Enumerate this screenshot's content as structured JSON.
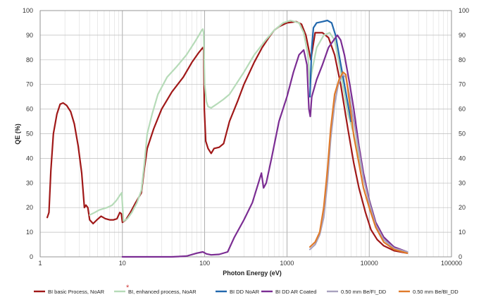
{
  "chart_data": {
    "type": "line",
    "xscale": "log",
    "xlim": [
      1,
      100000
    ],
    "ylim": [
      0,
      100
    ],
    "xlabel": "Photon Energy (eV)",
    "ylabel": "QE (%)",
    "x_ticks": [
      "1",
      "10",
      "100",
      "1000",
      "10000",
      "100000"
    ],
    "y_ticks": [
      "0",
      "10",
      "20",
      "30",
      "40",
      "50",
      "60",
      "70",
      "80",
      "90",
      "100"
    ],
    "grid": true,
    "legend_position": "bottom",
    "annotation": "*",
    "series": [
      {
        "name": "BI basic Process, NoAR",
        "color": "#a01818",
        "points": [
          [
            1.22,
            16
          ],
          [
            1.28,
            18
          ],
          [
            1.35,
            35
          ],
          [
            1.45,
            50
          ],
          [
            1.6,
            58
          ],
          [
            1.75,
            62
          ],
          [
            1.9,
            62.5
          ],
          [
            2.1,
            61.5
          ],
          [
            2.35,
            59
          ],
          [
            2.6,
            54
          ],
          [
            2.9,
            45
          ],
          [
            3.2,
            34
          ],
          [
            3.45,
            20
          ],
          [
            3.6,
            21
          ],
          [
            3.8,
            20
          ],
          [
            4.0,
            15
          ],
          [
            4.4,
            13.5
          ],
          [
            4.9,
            15
          ],
          [
            5.5,
            16.5
          ],
          [
            6.2,
            15.5
          ],
          [
            7,
            15
          ],
          [
            7.8,
            15
          ],
          [
            8.6,
            15.5
          ],
          [
            9.3,
            18
          ],
          [
            9.7,
            17.5
          ],
          [
            10,
            14
          ],
          [
            11,
            15
          ],
          [
            12.5,
            18
          ],
          [
            14.5,
            22
          ],
          [
            17,
            26
          ],
          [
            18.5,
            36
          ],
          [
            20,
            44
          ],
          [
            24,
            52
          ],
          [
            30,
            60
          ],
          [
            40,
            67
          ],
          [
            55,
            73
          ],
          [
            70,
            79
          ],
          [
            85,
            83
          ],
          [
            95,
            85
          ],
          [
            97,
            84
          ],
          [
            99,
            60
          ],
          [
            103,
            47
          ],
          [
            110,
            44
          ],
          [
            120,
            42
          ],
          [
            130,
            44
          ],
          [
            150,
            44.5
          ],
          [
            170,
            46
          ],
          [
            200,
            55
          ],
          [
            250,
            63
          ],
          [
            300,
            70
          ],
          [
            400,
            79
          ],
          [
            500,
            85
          ],
          [
            600,
            89
          ],
          [
            700,
            92
          ],
          [
            800,
            93.5
          ],
          [
            1000,
            95
          ],
          [
            1300,
            95.5
          ],
          [
            1500,
            94.5
          ],
          [
            1700,
            90
          ],
          [
            1950,
            80
          ],
          [
            2200,
            91
          ],
          [
            2700,
            91
          ],
          [
            3200,
            89
          ],
          [
            3800,
            82
          ],
          [
            4500,
            70
          ],
          [
            5500,
            52
          ],
          [
            6500,
            38
          ],
          [
            7500,
            28
          ],
          [
            9000,
            18
          ],
          [
            10500,
            11
          ],
          [
            12500,
            7
          ],
          [
            15000,
            4.5
          ],
          [
            20000,
            2.5
          ],
          [
            29000,
            1.5
          ]
        ]
      },
      {
        "name": "BI, enhanced process, NoAR",
        "color": "#b6dbb8",
        "points": [
          [
            4.0,
            17
          ],
          [
            4.6,
            18
          ],
          [
            5.2,
            19
          ],
          [
            6.5,
            20
          ],
          [
            7.5,
            21
          ],
          [
            8.5,
            23
          ],
          [
            9.3,
            25
          ],
          [
            9.8,
            26
          ],
          [
            10.3,
            14.5
          ],
          [
            11.5,
            15.5
          ],
          [
            13,
            18
          ],
          [
            15,
            22
          ],
          [
            17,
            27
          ],
          [
            18.5,
            38
          ],
          [
            20,
            50
          ],
          [
            23,
            58
          ],
          [
            27,
            66
          ],
          [
            35,
            73
          ],
          [
            45,
            77
          ],
          [
            60,
            82
          ],
          [
            75,
            87
          ],
          [
            85,
            90
          ],
          [
            92,
            92
          ],
          [
            95,
            92.5
          ],
          [
            97,
            91
          ],
          [
            100,
            70
          ],
          [
            105,
            63
          ],
          [
            110,
            61
          ],
          [
            120,
            60.5
          ],
          [
            140,
            62
          ],
          [
            170,
            64
          ],
          [
            200,
            66
          ],
          [
            300,
            75
          ],
          [
            400,
            82
          ],
          [
            550,
            88
          ],
          [
            700,
            92
          ],
          [
            900,
            95
          ],
          [
            1100,
            96
          ],
          [
            1400,
            95
          ],
          [
            1600,
            91
          ],
          [
            1800,
            82
          ],
          [
            1900,
            70
          ],
          [
            2000,
            75
          ],
          [
            2300,
            85
          ],
          [
            2800,
            90
          ],
          [
            3300,
            91
          ],
          [
            3800,
            88
          ],
          [
            4500,
            75
          ],
          [
            5500,
            58
          ],
          [
            6500,
            50
          ],
          [
            7800,
            38
          ],
          [
            9500,
            26
          ],
          [
            12000,
            14
          ],
          [
            15000,
            8
          ],
          [
            20000,
            4
          ],
          [
            29000,
            2
          ]
        ]
      },
      {
        "name": "BI DD NoAR",
        "color": "#2268ad",
        "points": [
          [
            1900,
            65
          ],
          [
            2000,
            85
          ],
          [
            2100,
            93
          ],
          [
            2300,
            95
          ],
          [
            2700,
            95.5
          ],
          [
            3100,
            96
          ],
          [
            3500,
            95
          ],
          [
            3900,
            90
          ],
          [
            4400,
            80
          ],
          [
            5000,
            70
          ],
          [
            6000,
            55
          ]
        ]
      },
      {
        "name": "BI DD AR Coated",
        "color": "#7b2d93",
        "points": [
          [
            10,
            0
          ],
          [
            20,
            0
          ],
          [
            40,
            0
          ],
          [
            60,
            0.3
          ],
          [
            80,
            1.5
          ],
          [
            95,
            2
          ],
          [
            105,
            1.2
          ],
          [
            120,
            0.8
          ],
          [
            150,
            1
          ],
          [
            190,
            2
          ],
          [
            230,
            8
          ],
          [
            300,
            15
          ],
          [
            380,
            22
          ],
          [
            450,
            30
          ],
          [
            490,
            34
          ],
          [
            520,
            28
          ],
          [
            560,
            30
          ],
          [
            650,
            40
          ],
          [
            800,
            55
          ],
          [
            1000,
            65
          ],
          [
            1200,
            75
          ],
          [
            1400,
            82
          ],
          [
            1600,
            84
          ],
          [
            1750,
            78
          ],
          [
            1850,
            60
          ],
          [
            1920,
            57
          ],
          [
            2000,
            65
          ],
          [
            2300,
            72
          ],
          [
            2700,
            78
          ],
          [
            3200,
            85
          ],
          [
            3700,
            88
          ],
          [
            4100,
            90
          ],
          [
            4500,
            88
          ],
          [
            5000,
            82
          ],
          [
            5800,
            70
          ],
          [
            6500,
            60
          ],
          [
            7500,
            45
          ],
          [
            8500,
            34
          ],
          [
            10000,
            23
          ],
          [
            12000,
            14
          ],
          [
            15000,
            8
          ],
          [
            20000,
            4
          ],
          [
            29000,
            2
          ]
        ]
      },
      {
        "name": "0.50 mm Be/FI_DD",
        "color": "#a9a2be",
        "points": [
          [
            1900,
            3
          ],
          [
            2200,
            5
          ],
          [
            2500,
            9
          ],
          [
            2800,
            16
          ],
          [
            3100,
            30
          ],
          [
            3400,
            48
          ],
          [
            3800,
            62
          ],
          [
            4200,
            70
          ],
          [
            4700,
            74
          ],
          [
            5200,
            73
          ],
          [
            5800,
            65
          ],
          [
            6500,
            55
          ],
          [
            7500,
            43
          ],
          [
            8500,
            32
          ],
          [
            10000,
            22
          ],
          [
            12000,
            13
          ],
          [
            15000,
            7
          ],
          [
            20000,
            3.5
          ],
          [
            29000,
            2
          ]
        ]
      },
      {
        "name": "0.50 mm Be/BI_DD",
        "color": "#e07b2b",
        "points": [
          [
            1900,
            4
          ],
          [
            2200,
            6
          ],
          [
            2500,
            10
          ],
          [
            2800,
            20
          ],
          [
            3100,
            35
          ],
          [
            3400,
            52
          ],
          [
            3800,
            66
          ],
          [
            4300,
            72
          ],
          [
            4800,
            75
          ],
          [
            5200,
            74
          ],
          [
            5800,
            62
          ],
          [
            6500,
            49
          ],
          [
            7500,
            38
          ],
          [
            8500,
            28
          ],
          [
            10000,
            20
          ],
          [
            12000,
            12
          ],
          [
            15000,
            6
          ],
          [
            20000,
            3
          ],
          [
            29000,
            1.5
          ]
        ]
      }
    ]
  }
}
